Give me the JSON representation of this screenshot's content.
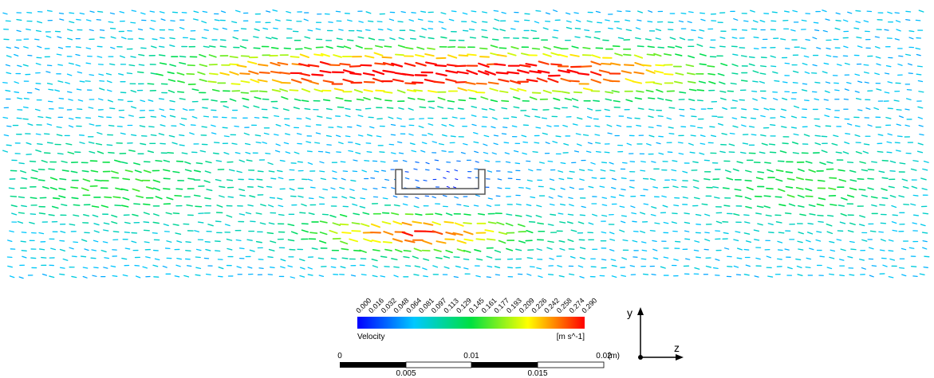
{
  "colorbar": {
    "ticks": [
      "0.000",
      "0.016",
      "0.032",
      "0.048",
      "0.064",
      "0.081",
      "0.097",
      "0.113",
      "0.129",
      "0.145",
      "0.161",
      "0.177",
      "0.193",
      "0.209",
      "0.226",
      "0.242",
      "0.258",
      "0.274",
      "0.290"
    ],
    "label": "Velocity",
    "unit": "[m s^-1]"
  },
  "scale_bar": {
    "top_ticks": [
      "0",
      "0.01",
      "0.02"
    ],
    "bottom_ticks": [
      "0.005",
      "0.015"
    ],
    "unit": "(m)"
  },
  "axes": {
    "vertical": "y",
    "horizontal": "z"
  }
}
